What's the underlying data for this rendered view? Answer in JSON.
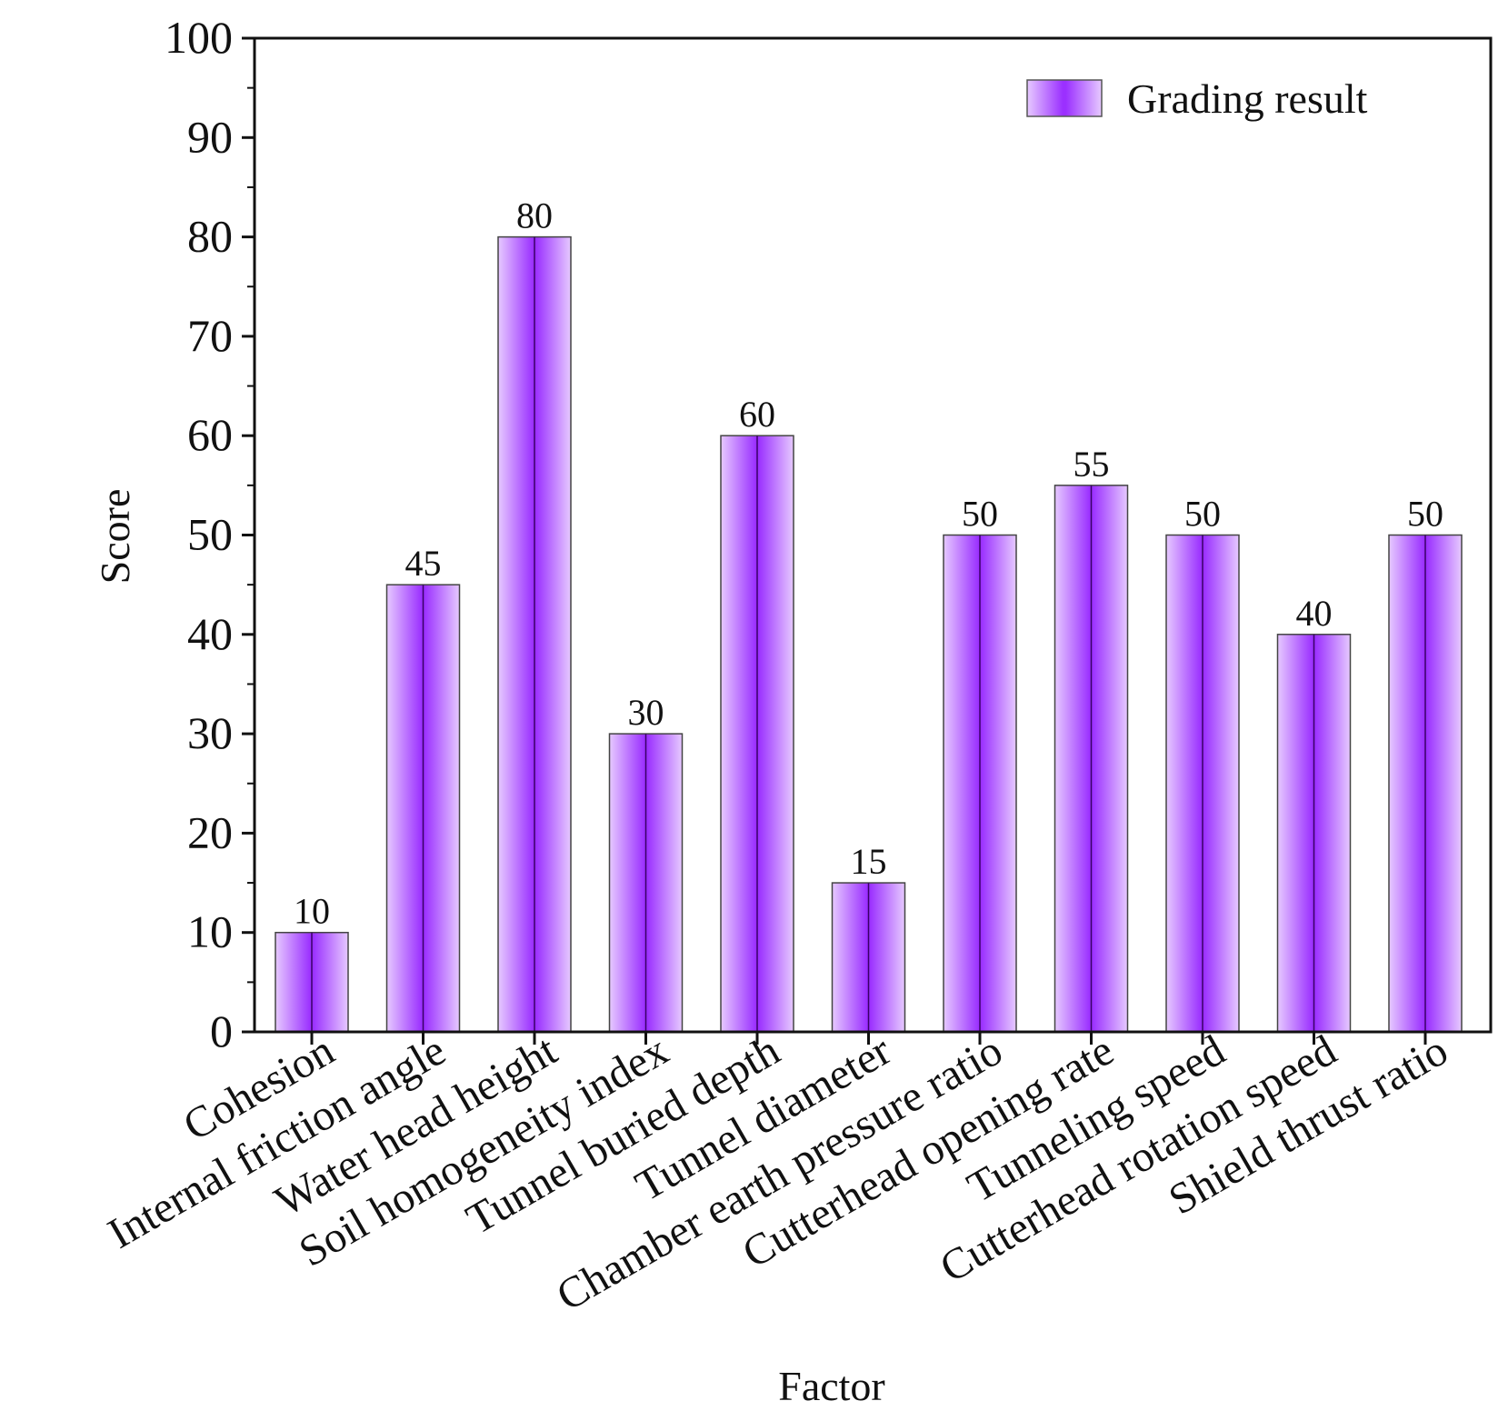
{
  "chart_data": {
    "type": "bar",
    "title": "",
    "xlabel": "Factor",
    "ylabel": "Score",
    "ylim": [
      0,
      100
    ],
    "yticks": [
      0,
      10,
      20,
      30,
      40,
      50,
      60,
      70,
      80,
      90,
      100
    ],
    "grid": false,
    "legend": {
      "position": "top-right",
      "entries": [
        "Grading result"
      ]
    },
    "categories": [
      "Cohesion",
      "Internal friction angle",
      "Water head height",
      "Soil homogeneity index",
      "Tunnel buried depth",
      "Tunnel diameter",
      "Chamber earth pressure ratio",
      "Cutterhead opening rate",
      "Tunneling speed",
      "Cutterhead rotation speed",
      "Shield thrust ratio"
    ],
    "series": [
      {
        "name": "Grading result",
        "values": [
          10,
          45,
          80,
          30,
          60,
          15,
          50,
          55,
          50,
          40,
          50
        ],
        "color": "#9b30ff"
      }
    ],
    "data_labels": [
      "10",
      "45",
      "80",
      "30",
      "60",
      "15",
      "50",
      "55",
      "50",
      "40",
      "50"
    ]
  }
}
